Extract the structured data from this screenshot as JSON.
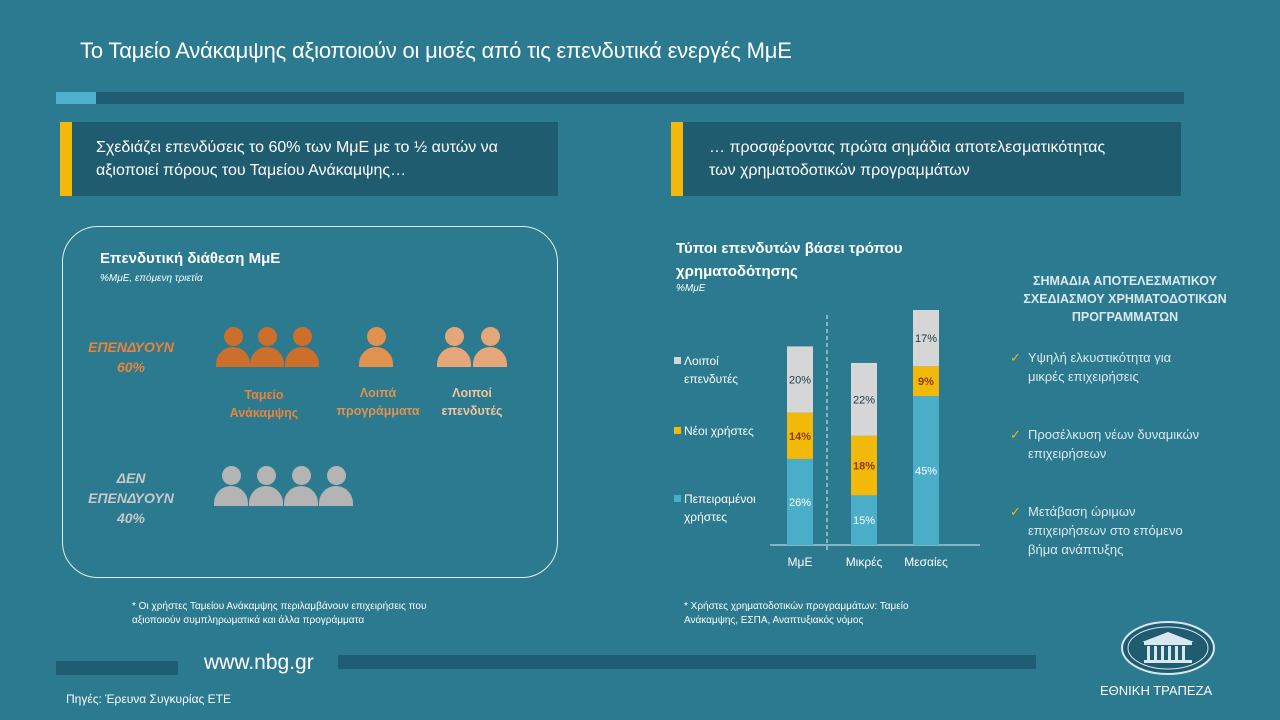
{
  "title": "Το Ταμείο Ανάκαμψης αξιοποιούν οι μισές από τις επενδυτικά ενεργές ΜμΕ",
  "banner_left": {
    "line1": "Σχεδιάζει επενδύσεις το 60% των ΜμΕ με το ½ αυτών να",
    "line2": "αξιοποιεί πόρους του Ταμείου Ανάκαμψης…"
  },
  "banner_right": {
    "line1": "… προσφέροντας πρώτα σημάδια αποτελεσματικότητας",
    "line2": "των χρηματοδοτικών προγραμμάτων"
  },
  "investment_box": {
    "title": "Επενδυτική διάθεση ΜμΕ",
    "subtitle": "%ΜμΕ,  επόμενη τριετία",
    "invest": {
      "line1": "ΕΠΕΝΔΥΟΥΝ",
      "line2": "60%"
    },
    "not_invest": {
      "line1": "ΔΕΝ",
      "line2": "ΕΠΕΝΔΥΟΥΝ",
      "line3": "40%"
    },
    "groups": [
      {
        "line1": "Ταμείο",
        "line2": "Ανάκαμψης"
      },
      {
        "line1": "Λοιπά",
        "line2": "προγράμματα"
      },
      {
        "line1": "Λοιποί",
        "line2": "επενδυτές"
      }
    ],
    "colors": {
      "recovery": "#cc6f2a",
      "other_programs": "#e0924f",
      "other_investors": "#e5a77a",
      "non_investors": "#b4b4b4"
    },
    "icons": [
      "person-icon"
    ]
  },
  "note_left": {
    "line1": "* Οι χρήστες Ταμείου Ανάκαμψης περιλαμβάνουν επιχειρήσεις που",
    "line2": "αξιοποιούν συμπληρωματικά και άλλα προγράμματα"
  },
  "chart_data": {
    "type": "bar",
    "stacked": true,
    "title_line1": "Τύποι επενδυτών βάσει τρόπου",
    "title_line2": "χρηματοδότησης",
    "subtitle": "%ΜμΕ",
    "categories": [
      "ΜμΕ",
      "Μικρές",
      "Μεσαίες"
    ],
    "series": [
      {
        "name": "Πεπειραμένοι χρήστες",
        "legend_line1": "Πεπειραμένοι",
        "legend_line2": "χρήστες",
        "values": [
          26,
          15,
          45
        ],
        "labels": [
          "26%",
          "15%",
          "45%"
        ],
        "color": "#4aaec9"
      },
      {
        "name": "Νέοι χρήστες",
        "legend_line1": "Νέοι χρήστες",
        "values": [
          14,
          18,
          9
        ],
        "labels": [
          "14%",
          "18%",
          "9%"
        ],
        "color": "#f3b90a"
      },
      {
        "name": "Λοιποί επενδυτές",
        "legend_line1": "Λοιποί",
        "legend_line2": "επενδυτές",
        "values": [
          20,
          22,
          17
        ],
        "labels": [
          "20%",
          "22%",
          "17%"
        ],
        "color": "#d6d6d6"
      }
    ],
    "ylim": [
      0,
      71
    ]
  },
  "note_right": {
    "line1": "* Χρήστες χρηματοδοτικών προγραμμάτων: Ταμείο",
    "line2": "Ανάκαμψης, ΕΣΠΑ, Αναπτυξιακός νόμος"
  },
  "right_panel": {
    "title_line1": "ΣΗΜΑΔΙΑ ΑΠΟΤΕΛΕΣΜΑΤΙΚΟΥ",
    "title_line2": "ΣΧΕΔΙΑΣΜΟΥ ΧΡΗΜΑΤΟΔΟΤΙΚΩΝ",
    "title_line3": "ΠΡΟΓΡΑΜΜΑΤΩΝ",
    "check_glyph": "✓",
    "items": [
      {
        "line1": "Υψηλή ελκυστικότητα  για",
        "line2": "μικρές επιχειρήσεις"
      },
      {
        "line1": "Προσέλκυση νέων δυναμικών",
        "line2": "επιχειρήσεων"
      },
      {
        "line1": "Μετάβαση ώριμων",
        "line2": "επιχειρήσεων στο επόμενο",
        "line3": "βήμα ανάπτυξης"
      }
    ]
  },
  "footer": {
    "website": "www.nbg.gr",
    "source": "Πηγές: Έρευνα Συγκυρίας ΕΤΕ",
    "bank_name": "ΕΘΝΙΚΗ ΤΡΑΠΕΖΑ"
  },
  "colors": {
    "background": "#2b7a8f",
    "banner": "#1f5c70",
    "accent_yellow": "#f3b90a"
  }
}
